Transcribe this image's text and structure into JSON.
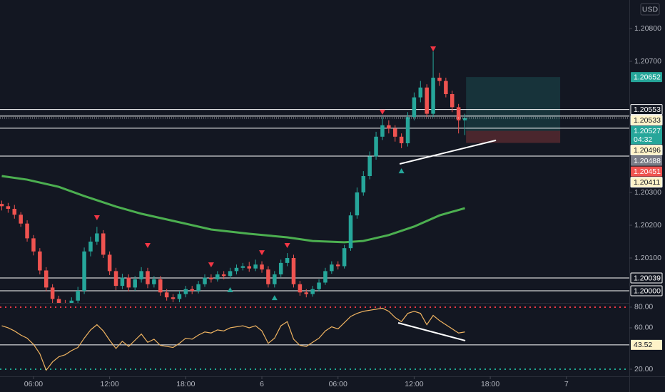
{
  "chart_data": [
    {
      "type": "candlestick",
      "currency": "USD",
      "xlim": [
        3.36,
        52.96
      ],
      "ylim": [
        1.19963,
        1.20887
      ],
      "yticks": [
        {
          "value": 1.208,
          "label": "1.20800"
        },
        {
          "value": 1.207,
          "label": "1.20700"
        },
        {
          "value": 1.203,
          "label": "1.20300"
        },
        {
          "value": 1.202,
          "label": "1.20200"
        },
        {
          "value": 1.201,
          "label": "1.20100"
        }
      ],
      "up_color": "#26a69a",
      "down_color": "#ef5350",
      "x": [
        3.5,
        4,
        4.5,
        5,
        5.5,
        6,
        6.5,
        7,
        7.5,
        8,
        8.5,
        9,
        9.5,
        10,
        10.5,
        11,
        11.5,
        12,
        12.5,
        13,
        13.5,
        14,
        14.5,
        15,
        15.5,
        16,
        16.5,
        17,
        17.5,
        18,
        18.5,
        19,
        19.5,
        20,
        20.5,
        21,
        21.5,
        22,
        22.5,
        23,
        23.5,
        24,
        24.5,
        25,
        25.5,
        26,
        26.5,
        27,
        27.5,
        28,
        28.5,
        29,
        29.5,
        30,
        30.5,
        31,
        31.5,
        32,
        32.5,
        33,
        33.5,
        34,
        34.5,
        35,
        35.5,
        36,
        36.5,
        37,
        37.5,
        38,
        38.5,
        39,
        39.5,
        40
      ],
      "open": [
        1.20265,
        1.20258,
        1.2025,
        1.20232,
        1.20205,
        1.2016,
        1.2012,
        1.20062,
        1.2001,
        1.19975,
        1.1996,
        1.19955,
        1.1997,
        1.2,
        1.2012,
        1.2015,
        1.20175,
        1.2011,
        1.2006,
        1.20015,
        1.2004,
        1.2001,
        1.20035,
        1.2006,
        1.2002,
        1.20035,
        1.19995,
        1.1998,
        1.19975,
        1.1999,
        1.20005,
        1.2,
        1.2002,
        1.2004,
        1.20035,
        1.2005,
        1.20045,
        1.2006,
        1.2007,
        1.20075,
        1.20068,
        1.2008,
        1.20065,
        1.2002,
        1.2005,
        1.20085,
        1.201,
        1.2002,
        1.19995,
        1.1999,
        1.20005,
        1.20025,
        1.2006,
        1.2008,
        1.20075,
        1.2013,
        1.2023,
        1.203,
        1.2035,
        1.2041,
        1.2047,
        1.20505,
        1.20495,
        1.2047,
        1.2045,
        1.2053,
        1.2059,
        1.2062,
        1.2054,
        1.2065,
        1.2064,
        1.206,
        1.2056,
        1.2052
      ],
      "high": [
        1.20275,
        1.20268,
        1.20262,
        1.2024,
        1.20215,
        1.2017,
        1.2013,
        1.20072,
        1.2002,
        1.19985,
        1.19972,
        1.1998,
        1.20012,
        1.20132,
        1.20165,
        1.20195,
        1.20185,
        1.2012,
        1.2007,
        1.20052,
        1.2005,
        1.20045,
        1.20072,
        1.2007,
        1.20045,
        1.20045,
        1.20005,
        1.1999,
        1.2,
        1.20015,
        1.20015,
        1.2003,
        1.2005,
        1.2005,
        1.2006,
        1.2006,
        1.2007,
        1.2008,
        1.20085,
        1.20088,
        1.20095,
        1.2009,
        1.20075,
        1.2006,
        1.20095,
        1.20115,
        1.2011,
        1.2003,
        1.20005,
        1.20015,
        1.20035,
        1.2007,
        1.2009,
        1.2009,
        1.2014,
        1.2024,
        1.20315,
        1.20365,
        1.20425,
        1.20485,
        1.2053,
        1.2052,
        1.20505,
        1.2048,
        1.20545,
        1.20605,
        1.2064,
        1.2063,
        1.2073,
        1.20665,
        1.2065,
        1.2061,
        1.2057,
        1.2054
      ],
      "low": [
        1.20245,
        1.20238,
        1.2022,
        1.20195,
        1.2015,
        1.20108,
        1.2005,
        1.19998,
        1.19962,
        1.19948,
        1.1994,
        1.19945,
        1.1996,
        1.1999,
        1.20105,
        1.2014,
        1.201,
        1.20048,
        1.20002,
        1.20005,
        1.19998,
        1.2,
        1.20025,
        1.20008,
        1.2001,
        1.19985,
        1.1997,
        1.19965,
        1.19965,
        1.1998,
        1.1999,
        1.19992,
        1.20012,
        1.20025,
        1.20028,
        1.20035,
        1.20038,
        1.2005,
        1.20062,
        1.20058,
        1.2006,
        1.20055,
        1.2001,
        1.2001,
        1.20042,
        1.20075,
        1.2001,
        1.19985,
        1.1998,
        1.19982,
        1.19998,
        1.20018,
        1.20052,
        1.20065,
        1.20068,
        1.20122,
        1.2022,
        1.2029,
        1.2034,
        1.204,
        1.2046,
        1.2048,
        1.20455,
        1.20435,
        1.2044,
        1.2052,
        1.20575,
        1.2053,
        1.2053,
        1.20625,
        1.2059,
        1.20545,
        1.2048,
        1.20475
      ],
      "close": [
        1.20258,
        1.2025,
        1.20232,
        1.20205,
        1.2016,
        1.2012,
        1.20062,
        1.2001,
        1.19975,
        1.1996,
        1.19955,
        1.1997,
        1.2,
        1.2012,
        1.2015,
        1.20175,
        1.2011,
        1.2006,
        1.20015,
        1.2004,
        1.2001,
        1.20035,
        1.2006,
        1.2002,
        1.20035,
        1.19995,
        1.1998,
        1.19975,
        1.1999,
        1.20005,
        1.2,
        1.2002,
        1.2004,
        1.20035,
        1.2005,
        1.20045,
        1.2006,
        1.2007,
        1.20075,
        1.20068,
        1.2008,
        1.20065,
        1.2002,
        1.2005,
        1.20085,
        1.201,
        1.2002,
        1.19995,
        1.1999,
        1.20005,
        1.20025,
        1.2006,
        1.2008,
        1.20075,
        1.2013,
        1.2023,
        1.203,
        1.2035,
        1.2041,
        1.2047,
        1.20505,
        1.20495,
        1.2047,
        1.2045,
        1.2053,
        1.2059,
        1.2062,
        1.2054,
        1.2065,
        1.2064,
        1.206,
        1.2056,
        1.2052,
        1.20527
      ],
      "ma": {
        "color": "#4caf50",
        "x": [
          3.5,
          5.5,
          8,
          10,
          12.5,
          14.5,
          17.5,
          20,
          23,
          26,
          28,
          30.5,
          32,
          34,
          36,
          38,
          40
        ],
        "values": [
          1.2035,
          1.20339,
          1.20317,
          1.20289,
          1.20257,
          1.20235,
          1.20209,
          1.20187,
          1.20174,
          1.20163,
          1.20152,
          1.20148,
          1.20152,
          1.2017,
          1.20196,
          1.2023,
          1.20252
        ]
      },
      "levels": [
        {
          "price": 1.20553,
          "color": "#ffffff",
          "label_bg": "#131722",
          "label_fg": "#ffffff"
        },
        {
          "price": 1.20533,
          "color": "#ffffff",
          "label_bg": "#fff3c8",
          "label_fg": "#131722"
        },
        {
          "price": 1.20496,
          "color": "#ffffff",
          "label_bg": "#fff3c8",
          "label_fg": "#131722"
        },
        {
          "price": 1.20411,
          "color": "#ffffff",
          "label_bg": "#fff3c8",
          "label_fg": "#131722"
        },
        {
          "price": 1.20039,
          "color": "#ffffff",
          "label_bg": "#131722",
          "label_fg": "#ffffff"
        },
        {
          "price": 1.2,
          "label": "1.20000",
          "color": "#ffffff",
          "label_bg": "#131722",
          "label_fg": "#ffffff"
        }
      ],
      "last": {
        "price": 1.20527,
        "countdown": "04:32",
        "color": "#26a69a"
      },
      "position": {
        "x": [
          40.09,
          47.51
        ],
        "target": 1.20652,
        "entry": 1.20488,
        "stop": 1.20451,
        "profit_color": "#26a69a",
        "loss_color": "#ef5350",
        "entry_color": "#787b86"
      },
      "markers": [
        {
          "x": 11,
          "price": 1.20224,
          "kind": "down"
        },
        {
          "x": 15,
          "price": 1.20139,
          "kind": "down"
        },
        {
          "x": 20,
          "price": 1.2008,
          "kind": "down"
        },
        {
          "x": 24,
          "price": 1.20117,
          "kind": "down"
        },
        {
          "x": 26,
          "price": 1.20139,
          "kind": "down"
        },
        {
          "x": 33.5,
          "price": 1.20546,
          "kind": "down"
        },
        {
          "x": 37.5,
          "price": 1.20739,
          "kind": "down"
        },
        {
          "x": 21.5,
          "price": 1.20002,
          "kind": "up"
        },
        {
          "x": 25,
          "price": 1.19978,
          "kind": "up"
        },
        {
          "x": 35,
          "price": 1.20365,
          "kind": "up"
        }
      ],
      "down_marker_color": "#f23645",
      "up_marker_color": "#26a69a",
      "trendlines": [
        {
          "x": [
            34.86,
            42.45
          ],
          "price": [
            1.20387,
            1.20459
          ],
          "color": "#ffffff"
        }
      ]
    },
    {
      "type": "line",
      "color": "#f0b461",
      "xlim": [
        3.36,
        52.96
      ],
      "ylim": [
        13.1,
        84.1
      ],
      "yticks": [
        {
          "value": 80,
          "label": "80.00"
        },
        {
          "value": 60,
          "label": "60.00"
        },
        {
          "value": 20,
          "label": "20.00"
        }
      ],
      "xticks": [
        {
          "value": 6,
          "label": "06:00"
        },
        {
          "value": 12,
          "label": "12:00"
        },
        {
          "value": 18,
          "label": "18:00"
        },
        {
          "value": 24,
          "label": "6"
        },
        {
          "value": 30,
          "label": "06:00"
        },
        {
          "value": 36,
          "label": "12:00"
        },
        {
          "value": 42,
          "label": "18:00"
        },
        {
          "value": 48,
          "label": "7"
        }
      ],
      "x": [
        3.5,
        4,
        4.5,
        5,
        5.5,
        6,
        6.5,
        7,
        7.5,
        8,
        8.5,
        9,
        9.5,
        10,
        10.5,
        11,
        11.5,
        12,
        12.5,
        13,
        13.5,
        14,
        14.5,
        15,
        15.5,
        16,
        16.5,
        17,
        17.5,
        18,
        18.5,
        19,
        19.5,
        20,
        20.5,
        21,
        21.5,
        22,
        22.5,
        23,
        23.5,
        24,
        24.5,
        25,
        25.5,
        26,
        26.5,
        27,
        27.5,
        28,
        28.5,
        29,
        29.5,
        30,
        30.5,
        31,
        31.5,
        32,
        32.5,
        33,
        33.5,
        34,
        34.5,
        35,
        35.5,
        36,
        36.5,
        37,
        37.5,
        38,
        38.5,
        39,
        39.5,
        40
      ],
      "values": [
        62,
        60,
        57,
        53,
        50,
        44,
        35,
        19,
        27,
        32,
        34,
        38,
        41,
        50,
        58,
        63,
        57,
        48,
        40,
        47,
        42,
        48,
        54,
        46,
        49,
        43,
        42,
        41,
        45,
        50,
        49,
        53,
        56,
        55,
        58,
        57,
        60,
        61,
        62,
        60,
        62,
        57,
        45,
        50,
        62,
        66,
        49,
        43,
        42,
        46,
        50,
        57,
        61,
        59,
        65,
        71,
        74,
        76,
        77,
        78,
        79,
        76,
        70,
        66,
        74,
        76,
        74,
        63,
        72,
        67,
        63,
        59,
        55,
        56
      ],
      "overbought": {
        "value": 80,
        "color": "#f23645"
      },
      "oversold": {
        "value": 20,
        "color": "#22ab94"
      },
      "levels": [
        {
          "value": 43.52,
          "color": "#ffffff",
          "label_bg": "#fff3c8",
          "label_fg": "#131722"
        }
      ],
      "trendlines": [
        {
          "x": [
            34.74,
            40.03
          ],
          "values": [
            64.8,
            47.6
          ],
          "color": "#ffffff"
        }
      ]
    }
  ]
}
